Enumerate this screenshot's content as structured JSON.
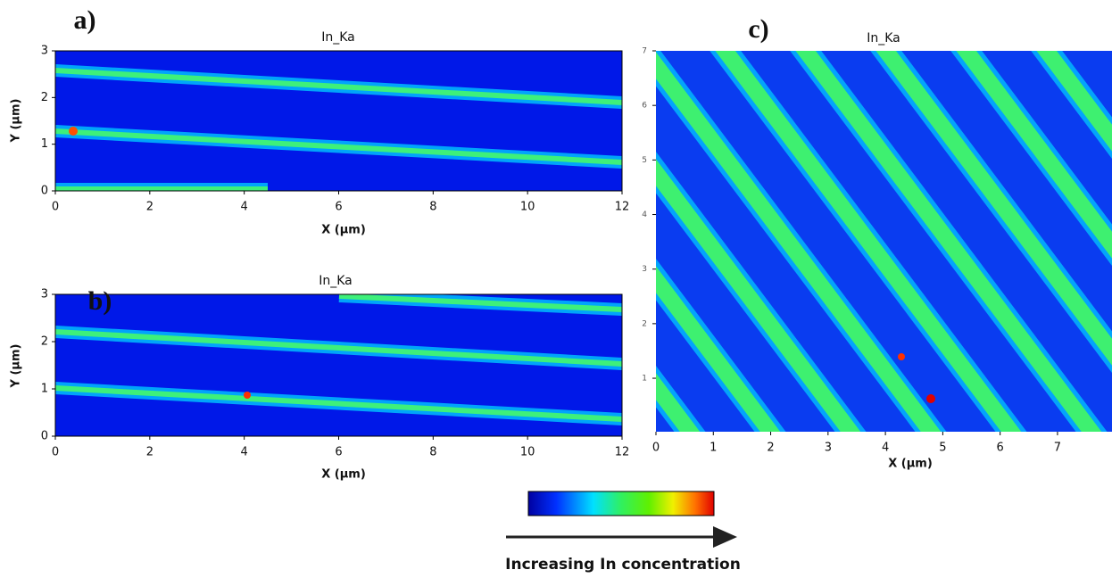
{
  "panels": [
    {
      "label": "a)",
      "title": "In_Ka",
      "xlabel": "X (µm)",
      "ylabel": "Y (µm)",
      "xticks": [
        0,
        2,
        4,
        6,
        8,
        10,
        12
      ],
      "yticks": [
        0,
        1,
        2,
        3
      ]
    },
    {
      "label": "b)",
      "title": "In_Ka",
      "xlabel": "X (µm)",
      "ylabel": "Y (µm)",
      "xticks": [
        0,
        2,
        4,
        6,
        8,
        10,
        12
      ],
      "yticks": [
        0,
        1,
        2,
        3
      ]
    },
    {
      "label": "c)",
      "title": "In_Ka",
      "xlabel": "X (µm)",
      "xticks": [
        0,
        1,
        2,
        3,
        4,
        5,
        6,
        7
      ],
      "yticks": [
        1,
        2,
        3,
        4,
        5,
        6,
        7
      ]
    }
  ],
  "colorbar_caption": "Increasing In concentration"
}
